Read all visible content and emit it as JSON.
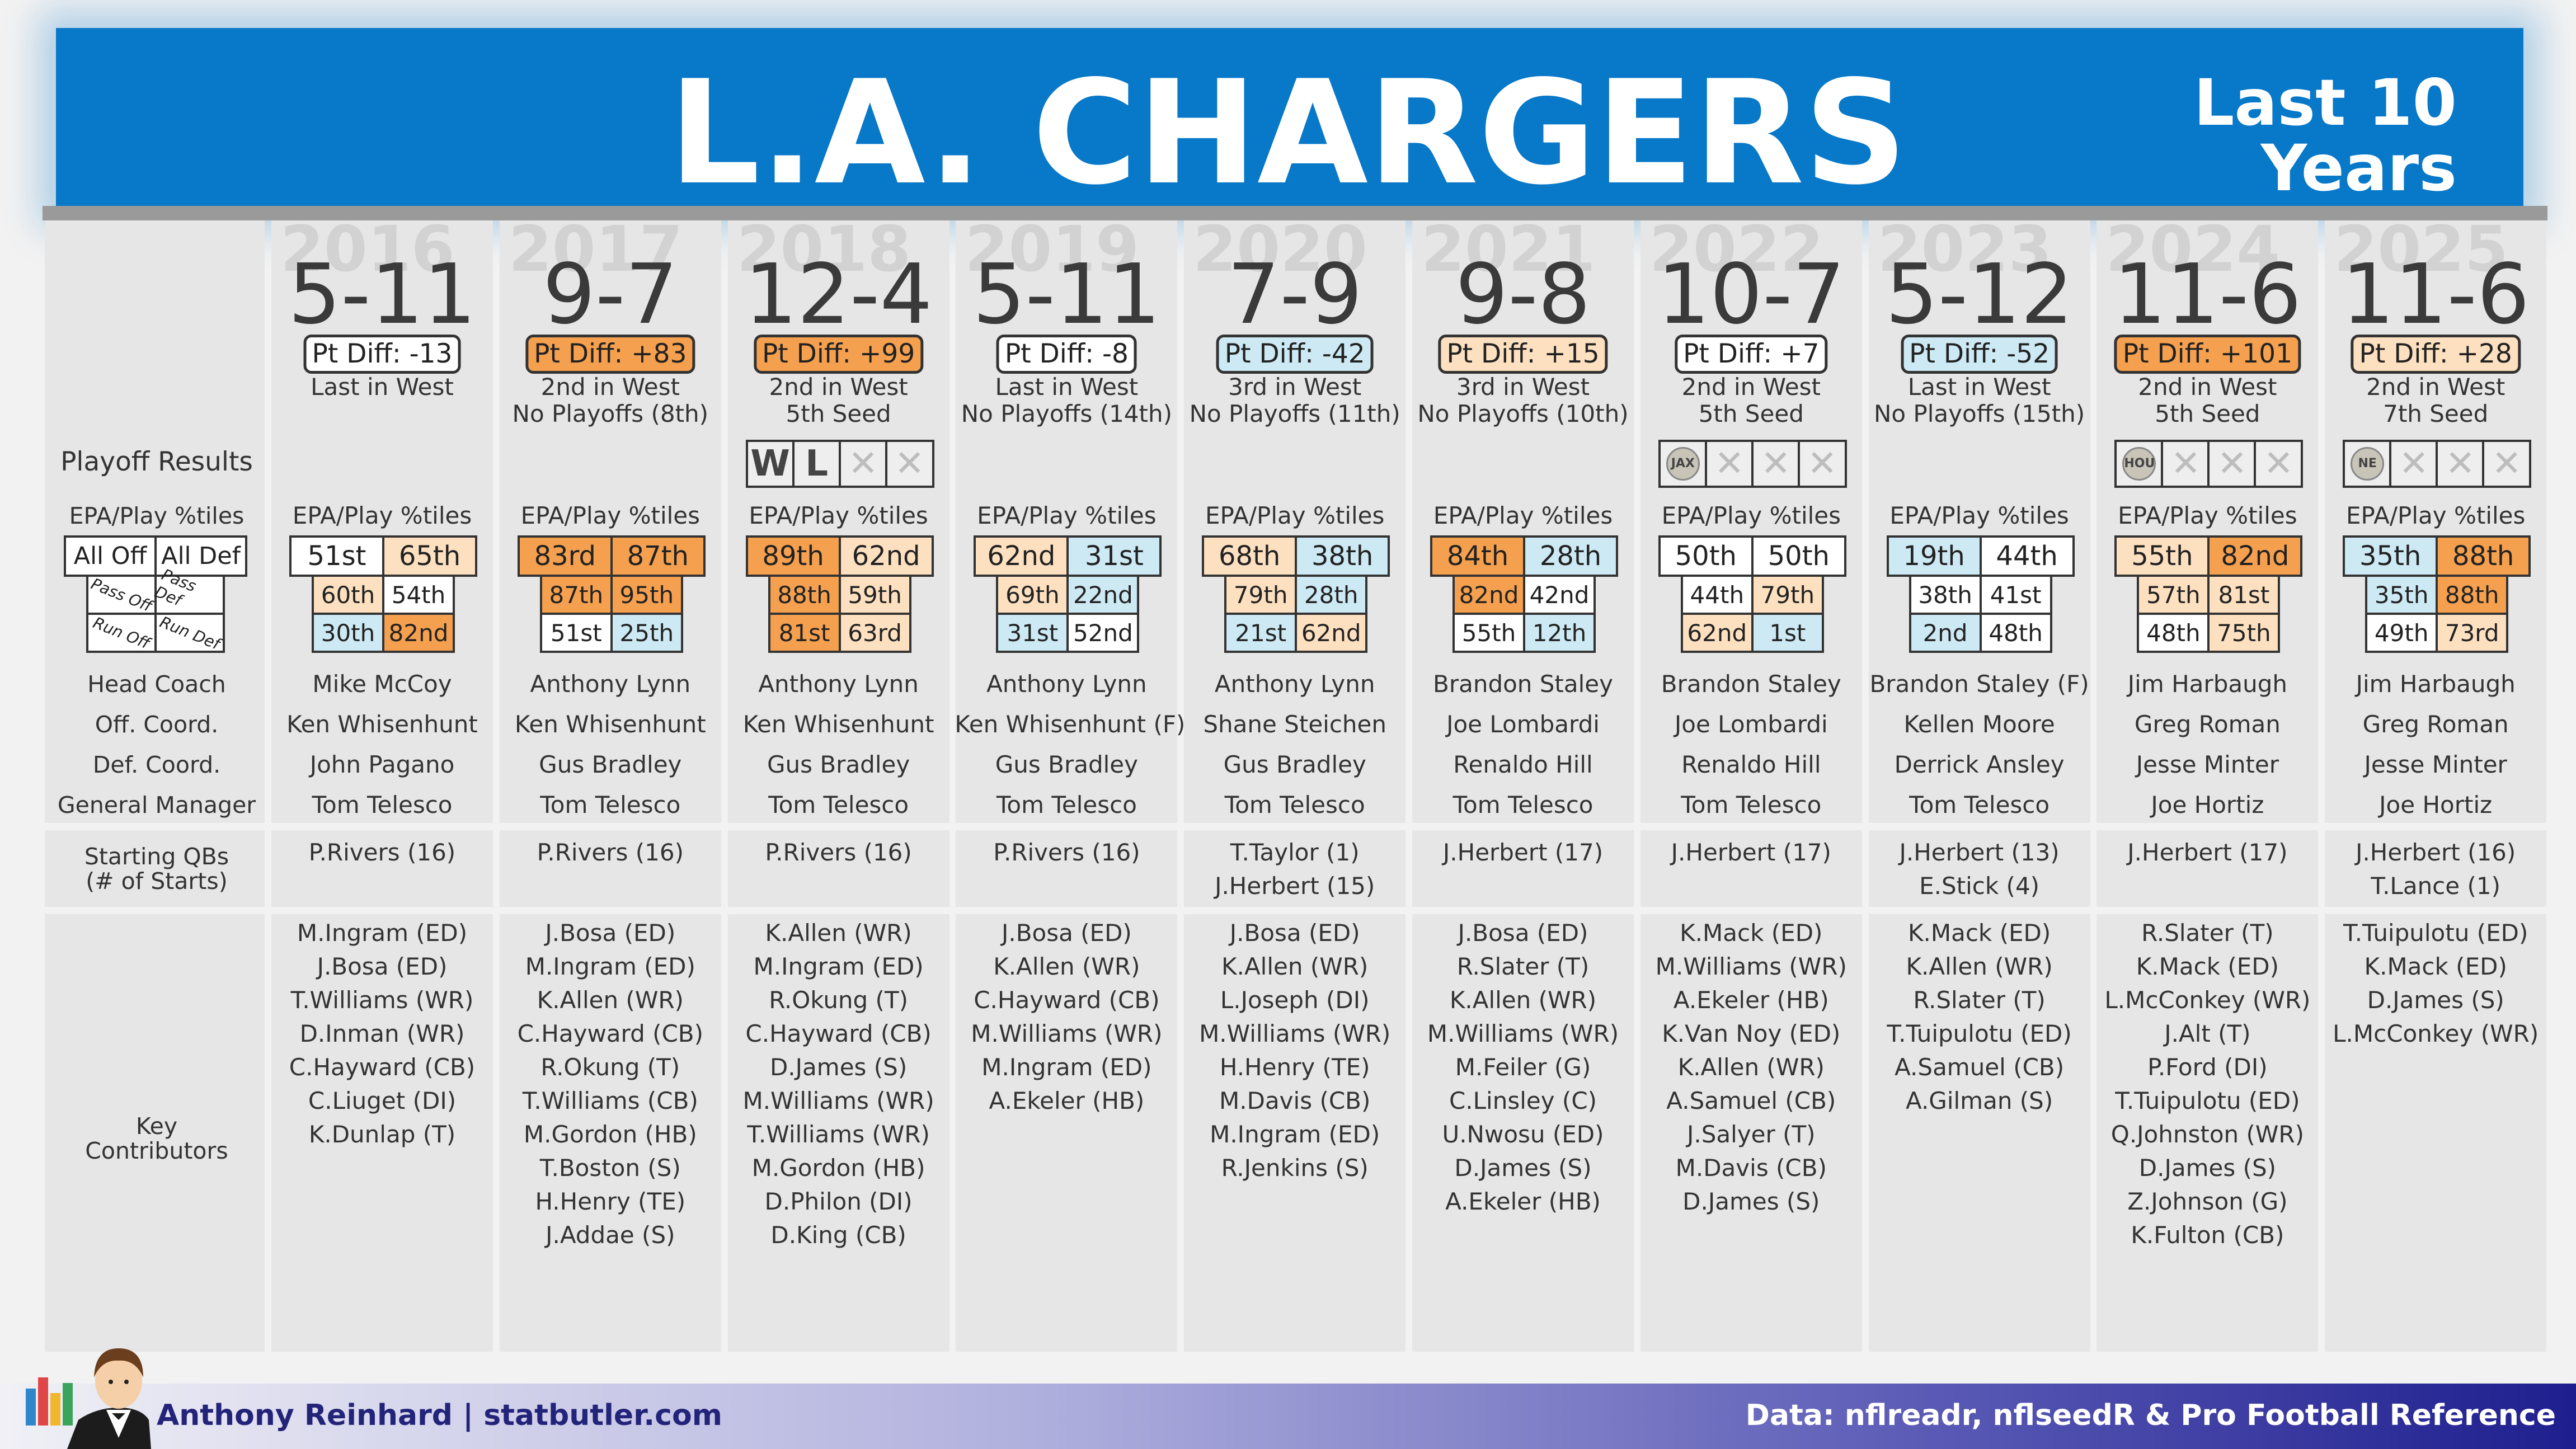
{
  "header": {
    "title": "L.A. CHARGERS",
    "subtitle_line1": "Last 10",
    "subtitle_line2": "Years"
  },
  "footer": {
    "credit": "Anthony Reinhard  |  statbutler.com",
    "source": "Data: nflreadr, nflseedR & Pro Football Reference"
  },
  "labels": {
    "playoff_results": "Playoff Results",
    "epa_title": "EPA/Play %tiles",
    "all_off": "All Off",
    "all_def": "All Def",
    "pass_off": "Pass Off",
    "pass_def": "Pass Def",
    "run_off": "Run Off",
    "run_def": "Run Def",
    "head_coach": "Head Coach",
    "off_coord": "Off. Coord.",
    "def_coord": "Def. Coord.",
    "gm": "General Manager",
    "starting_qbs_1": "Starting QBs",
    "starting_qbs_2": "(# of Starts)",
    "key_1": "Key",
    "key_2": "Contributors"
  },
  "colors": {
    "orange_dark": "#f5a04f",
    "orange_light": "#fde0c0",
    "white": "#ffffff",
    "blue_light": "#cde9f4"
  },
  "seasons": [
    {
      "year": "2016",
      "record": "5-11",
      "pt_diff": "Pt Diff: -13",
      "pd_color": "#ffffff",
      "finish": "Last in West",
      "playoffs": "",
      "epa_title": "EPA/Play %tiles",
      "all_off": "51st",
      "all_def": "65th",
      "pass_off": "60th",
      "pass_def": "54th",
      "run_off": "30th",
      "run_def": "82nd",
      "c_all_off": "#ffffff",
      "c_all_def": "#fde0c0",
      "c_pass_off": "#fde0c0",
      "c_pass_def": "#ffffff",
      "c_run_off": "#cde9f4",
      "c_run_def": "#f5a04f",
      "playoff_games": [],
      "head_coach": "Mike McCoy",
      "off_coord": "Ken Whisenhunt",
      "def_coord": "John Pagano",
      "gm": "Tom Telesco",
      "qbs": [
        "P.Rivers (16)"
      ],
      "contributors": [
        "M.Ingram (ED)",
        "J.Bosa (ED)",
        "T.Williams (WR)",
        "D.Inman (WR)",
        "C.Hayward (CB)",
        "C.Liuget (DI)",
        "K.Dunlap (T)"
      ]
    },
    {
      "year": "2017",
      "record": "9-7",
      "pt_diff": "Pt Diff: +83",
      "pd_color": "#f5a04f",
      "finish": "2nd in West",
      "playoffs": "No Playoffs (8th)",
      "epa_title": "EPA/Play %tiles",
      "all_off": "83rd",
      "all_def": "87th",
      "pass_off": "87th",
      "pass_def": "95th",
      "run_off": "51st",
      "run_def": "25th",
      "c_all_off": "#f5a04f",
      "c_all_def": "#f5a04f",
      "c_pass_off": "#f5a04f",
      "c_pass_def": "#f5a04f",
      "c_run_off": "#ffffff",
      "c_run_def": "#cde9f4",
      "playoff_games": [],
      "head_coach": "Anthony Lynn",
      "off_coord": "Ken Whisenhunt",
      "def_coord": "Gus Bradley",
      "gm": "Tom Telesco",
      "qbs": [
        "P.Rivers (16)"
      ],
      "contributors": [
        "J.Bosa (ED)",
        "M.Ingram (ED)",
        "K.Allen (WR)",
        "C.Hayward (CB)",
        "R.Okung (T)",
        "T.Williams (CB)",
        "M.Gordon (HB)",
        "T.Boston (S)",
        "H.Henry (TE)",
        "J.Addae (S)"
      ]
    },
    {
      "year": "2018",
      "record": "12-4",
      "pt_diff": "Pt Diff: +99",
      "pd_color": "#f5a04f",
      "finish": "2nd in West",
      "playoffs": "5th Seed",
      "epa_title": "EPA/Play %tiles",
      "all_off": "89th",
      "all_def": "62nd",
      "pass_off": "88th",
      "pass_def": "59th",
      "run_off": "81st",
      "run_def": "63rd",
      "c_all_off": "#f5a04f",
      "c_all_def": "#fde0c0",
      "c_pass_off": "#f5a04f",
      "c_pass_def": "#fde0c0",
      "c_run_off": "#f5a04f",
      "c_run_def": "#fde0c0",
      "playoff_games": [
        "W",
        "L",
        "X",
        "X"
      ],
      "head_coach": "Anthony Lynn",
      "off_coord": "Ken Whisenhunt",
      "def_coord": "Gus Bradley",
      "gm": "Tom Telesco",
      "qbs": [
        "P.Rivers (16)"
      ],
      "contributors": [
        "K.Allen (WR)",
        "M.Ingram (ED)",
        "R.Okung (T)",
        "C.Hayward (CB)",
        "D.James (S)",
        "M.Williams (WR)",
        "T.Williams (WR)",
        "M.Gordon (HB)",
        "D.Philon (DI)",
        "D.King (CB)"
      ]
    },
    {
      "year": "2019",
      "record": "5-11",
      "pt_diff": "Pt Diff: -8",
      "pd_color": "#ffffff",
      "finish": "Last in West",
      "playoffs": "No Playoffs (14th)",
      "epa_title": "EPA/Play %tiles",
      "all_off": "62nd",
      "all_def": "31st",
      "pass_off": "69th",
      "pass_def": "22nd",
      "run_off": "31st",
      "run_def": "52nd",
      "c_all_off": "#fde0c0",
      "c_all_def": "#cde9f4",
      "c_pass_off": "#fde0c0",
      "c_pass_def": "#cde9f4",
      "c_run_off": "#cde9f4",
      "c_run_def": "#ffffff",
      "playoff_games": [],
      "head_coach": "Anthony Lynn",
      "off_coord": "Ken Whisenhunt (F)",
      "def_coord": "Gus Bradley",
      "gm": "Tom Telesco",
      "qbs": [
        "P.Rivers (16)"
      ],
      "contributors": [
        "J.Bosa (ED)",
        "K.Allen (WR)",
        "C.Hayward (CB)",
        "M.Williams (WR)",
        "M.Ingram (ED)",
        "A.Ekeler (HB)"
      ]
    },
    {
      "year": "2020",
      "record": "7-9",
      "pt_diff": "Pt Diff: -42",
      "pd_color": "#cde9f4",
      "finish": "3rd in West",
      "playoffs": "No Playoffs (11th)",
      "epa_title": "EPA/Play %tiles",
      "all_off": "68th",
      "all_def": "38th",
      "pass_off": "79th",
      "pass_def": "28th",
      "run_off": "21st",
      "run_def": "62nd",
      "c_all_off": "#fde0c0",
      "c_all_def": "#cde9f4",
      "c_pass_off": "#fde0c0",
      "c_pass_def": "#cde9f4",
      "c_run_off": "#cde9f4",
      "c_run_def": "#fde0c0",
      "playoff_games": [],
      "head_coach": "Anthony Lynn",
      "off_coord": "Shane Steichen",
      "def_coord": "Gus Bradley",
      "gm": "Tom Telesco",
      "qbs": [
        "T.Taylor (1)",
        "J.Herbert (15)"
      ],
      "contributors": [
        "J.Bosa (ED)",
        "K.Allen (WR)",
        "L.Joseph (DI)",
        "M.Williams (WR)",
        "H.Henry (TE)",
        "M.Davis (CB)",
        "M.Ingram (ED)",
        "R.Jenkins (S)"
      ]
    },
    {
      "year": "2021",
      "record": "9-8",
      "pt_diff": "Pt Diff: +15",
      "pd_color": "#fde0c0",
      "finish": "3rd in West",
      "playoffs": "No Playoffs (10th)",
      "epa_title": "EPA/Play %tiles",
      "all_off": "84th",
      "all_def": "28th",
      "pass_off": "82nd",
      "pass_def": "42nd",
      "run_off": "55th",
      "run_def": "12th",
      "c_all_off": "#f5a04f",
      "c_all_def": "#cde9f4",
      "c_pass_off": "#f5a04f",
      "c_pass_def": "#ffffff",
      "c_run_off": "#ffffff",
      "c_run_def": "#cde9f4",
      "playoff_games": [],
      "head_coach": "Brandon Staley",
      "off_coord": "Joe Lombardi",
      "def_coord": "Renaldo Hill",
      "gm": "Tom Telesco",
      "qbs": [
        "J.Herbert (17)"
      ],
      "contributors": [
        "J.Bosa (ED)",
        "R.Slater (T)",
        "K.Allen (WR)",
        "M.Williams (WR)",
        "M.Feiler (G)",
        "C.Linsley (C)",
        "U.Nwosu (ED)",
        "D.James (S)",
        "A.Ekeler (HB)"
      ]
    },
    {
      "year": "2022",
      "record": "10-7",
      "pt_diff": "Pt Diff: +7",
      "pd_color": "#ffffff",
      "finish": "2nd in West",
      "playoffs": "5th Seed",
      "epa_title": "EPA/Play %tiles",
      "all_off": "50th",
      "all_def": "50th",
      "pass_off": "44th",
      "pass_def": "79th",
      "run_off": "62nd",
      "run_def": "1st",
      "c_all_off": "#ffffff",
      "c_all_def": "#ffffff",
      "c_pass_off": "#ffffff",
      "c_pass_def": "#fde0c0",
      "c_run_off": "#fde0c0",
      "c_run_def": "#cde9f4",
      "playoff_games": [
        "JAX",
        "X",
        "X",
        "X"
      ],
      "head_coach": "Brandon Staley",
      "off_coord": "Joe Lombardi",
      "def_coord": "Renaldo Hill",
      "gm": "Tom Telesco",
      "qbs": [
        "J.Herbert (17)"
      ],
      "contributors": [
        "K.Mack (ED)",
        "M.Williams (WR)",
        "A.Ekeler (HB)",
        "K.Van Noy (ED)",
        "K.Allen (WR)",
        "A.Samuel (CB)",
        "J.Salyer (T)",
        "M.Davis (CB)",
        "D.James (S)"
      ]
    },
    {
      "year": "2023",
      "record": "5-12",
      "pt_diff": "Pt Diff: -52",
      "pd_color": "#cde9f4",
      "finish": "Last in West",
      "playoffs": "No Playoffs (15th)",
      "epa_title": "EPA/Play %tiles",
      "all_off": "19th",
      "all_def": "44th",
      "pass_off": "38th",
      "pass_def": "41st",
      "run_off": "2nd",
      "run_def": "48th",
      "c_all_off": "#cde9f4",
      "c_all_def": "#ffffff",
      "c_pass_off": "#ffffff",
      "c_pass_def": "#ffffff",
      "c_run_off": "#cde9f4",
      "c_run_def": "#ffffff",
      "playoff_games": [],
      "head_coach": "Brandon Staley (F)",
      "off_coord": "Kellen Moore",
      "def_coord": "Derrick Ansley",
      "gm": "Tom Telesco",
      "qbs": [
        "J.Herbert (13)",
        "E.Stick (4)"
      ],
      "contributors": [
        "K.Mack (ED)",
        "K.Allen (WR)",
        "R.Slater (T)",
        "T.Tuipulotu (ED)",
        "A.Samuel (CB)",
        "A.Gilman (S)"
      ]
    },
    {
      "year": "2024",
      "record": "11-6",
      "pt_diff": "Pt Diff: +101",
      "pd_color": "#f5a04f",
      "finish": "2nd in West",
      "playoffs": "5th Seed",
      "epa_title": "EPA/Play %tiles",
      "all_off": "55th",
      "all_def": "82nd",
      "pass_off": "57th",
      "pass_def": "81st",
      "run_off": "48th",
      "run_def": "75th",
      "c_all_off": "#fde0c0",
      "c_all_def": "#f5a04f",
      "c_pass_off": "#fde0c0",
      "c_pass_def": "#fde0c0",
      "c_run_off": "#ffffff",
      "c_run_def": "#fde0c0",
      "playoff_games": [
        "HOU",
        "X",
        "X",
        "X"
      ],
      "head_coach": "Jim Harbaugh",
      "off_coord": "Greg Roman",
      "def_coord": "Jesse Minter",
      "gm": "Joe Hortiz",
      "qbs": [
        "J.Herbert (17)"
      ],
      "contributors": [
        "R.Slater (T)",
        "K.Mack (ED)",
        "L.McConkey (WR)",
        "J.Alt (T)",
        "P.Ford (DI)",
        "T.Tuipulotu (ED)",
        "Q.Johnston (WR)",
        "D.James (S)",
        "Z.Johnson (G)",
        "K.Fulton (CB)"
      ]
    },
    {
      "year": "2025",
      "record": "11-6",
      "pt_diff": "Pt Diff: +28",
      "pd_color": "#fde0c0",
      "finish": "2nd in West",
      "playoffs": "7th Seed",
      "epa_title": "EPA/Play %tiles",
      "all_off": "35th",
      "all_def": "88th",
      "pass_off": "35th",
      "pass_def": "88th",
      "run_off": "49th",
      "run_def": "73rd",
      "c_all_off": "#cde9f4",
      "c_all_def": "#f5a04f",
      "c_pass_off": "#cde9f4",
      "c_pass_def": "#f5a04f",
      "c_run_off": "#ffffff",
      "c_run_def": "#fde0c0",
      "playoff_games": [
        "NE",
        "X",
        "X",
        "X"
      ],
      "head_coach": "Jim Harbaugh",
      "off_coord": "Greg Roman",
      "def_coord": "Jesse Minter",
      "gm": "Joe Hortiz",
      "qbs": [
        "J.Herbert (16)",
        "T.Lance (1)"
      ],
      "contributors": [
        "T.Tuipulotu (ED)",
        "K.Mack (ED)",
        "D.James (S)",
        "L.McConkey (WR)"
      ]
    }
  ]
}
